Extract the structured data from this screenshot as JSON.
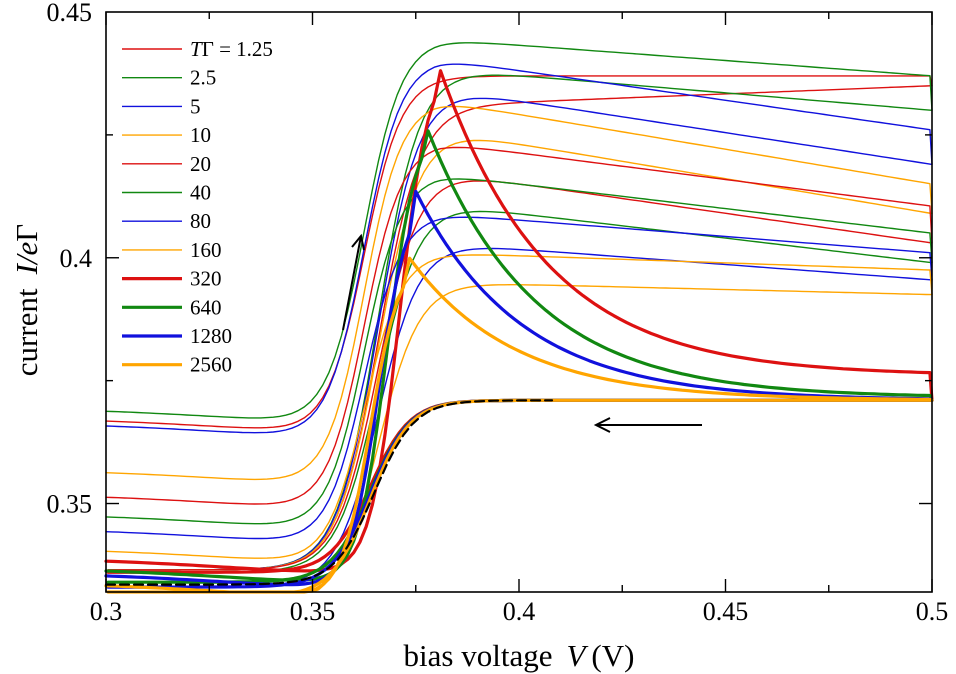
{
  "chart_data": {
    "type": "line",
    "xlabel": {
      "prefix": "bias voltage",
      "var": "V",
      "unit": "(V)"
    },
    "ylabel": {
      "prefix": "current",
      "var": "I/e",
      "greek": "Γ"
    },
    "xlim": [
      0.3,
      0.5
    ],
    "ylim": [
      0.332,
      0.45
    ],
    "xticks": [
      0.3,
      0.35,
      0.4,
      0.45,
      0.5
    ],
    "yticks": [
      0.35,
      0.4,
      0.45
    ],
    "xtick_labels": [
      "0.3",
      "0.35",
      "0.4",
      "0.45",
      "0.5"
    ],
    "ytick_labels": [
      "0.35",
      "0.4",
      "0.45"
    ],
    "legend_title_prefix": "TΓ = ",
    "reference_curve": {
      "name": "equilibrium",
      "style": "dashed",
      "color": "#000000"
    },
    "colors": {
      "red": "#dd1111",
      "green": "#118811",
      "blue": "#1111dd",
      "orange": "#ffa500"
    },
    "series": [
      {
        "name": "1.25",
        "color": "#dd1111",
        "width": 1.4,
        "low": 0.3675,
        "up": 0.437,
        "peak": null,
        "peakV": null,
        "endUp": 0.437,
        "endDown": 0.435
      },
      {
        "name": "2.5",
        "color": "#118811",
        "width": 1.4,
        "low": 0.3695,
        "up": 0.4445,
        "peak": 0.4447,
        "peakV": 0.39,
        "endUp": 0.437,
        "endDown": 0.43
      },
      {
        "name": "5",
        "color": "#1111dd",
        "width": 1.4,
        "low": 0.3665,
        "up": 0.4405,
        "peak": 0.4418,
        "peakV": 0.386,
        "endUp": 0.426,
        "endDown": 0.419
      },
      {
        "name": "10",
        "color": "#ffa500",
        "width": 1.4,
        "low": 0.357,
        "up": 0.432,
        "peak": 0.432,
        "peakV": 0.385,
        "endUp": 0.415,
        "endDown": 0.409
      },
      {
        "name": "20",
        "color": "#dd1111",
        "width": 1.4,
        "low": 0.352,
        "up": 0.4235,
        "peak": 0.4235,
        "peakV": 0.379,
        "endUp": 0.4105,
        "endDown": 0.403
      },
      {
        "name": "40",
        "color": "#118811",
        "width": 1.4,
        "low": 0.348,
        "up": 0.417,
        "peak": 0.417,
        "peakV": 0.378,
        "endUp": 0.405,
        "endDown": 0.399
      },
      {
        "name": "80",
        "color": "#1111dd",
        "width": 1.4,
        "low": 0.345,
        "up": 0.409,
        "peak": 0.409,
        "peakV": 0.377,
        "endUp": 0.401,
        "endDown": 0.3955
      },
      {
        "name": "160",
        "color": "#ffa500",
        "width": 1.4,
        "low": 0.341,
        "up": 0.401,
        "peak": 0.401,
        "peakV": 0.376,
        "endUp": 0.3975,
        "endDown": 0.3925
      },
      {
        "name": "320",
        "color": "#dd1111",
        "width": 3.2,
        "low": 0.339,
        "up": 0.4405,
        "peak": 0.4405,
        "peakV": 0.38,
        "endUp": 0.394,
        "endDown": 0.376
      },
      {
        "name": "640",
        "color": "#118811",
        "width": 3.2,
        "low": 0.337,
        "up": 0.428,
        "peak": 0.428,
        "peakV": 0.377,
        "endUp": 0.3905,
        "endDown": 0.3715
      },
      {
        "name": "1280",
        "color": "#1111dd",
        "width": 3.2,
        "low": 0.336,
        "up": 0.4135,
        "peak": 0.4135,
        "peakV": 0.375,
        "endUp": 0.3875,
        "endDown": 0.371
      },
      {
        "name": "2560",
        "color": "#ffa500",
        "width": 3.2,
        "low": 0.334,
        "up": 0.4005,
        "peak": 0.4005,
        "peakV": 0.373,
        "endUp": 0.384,
        "endDown": 0.371
      }
    ]
  }
}
